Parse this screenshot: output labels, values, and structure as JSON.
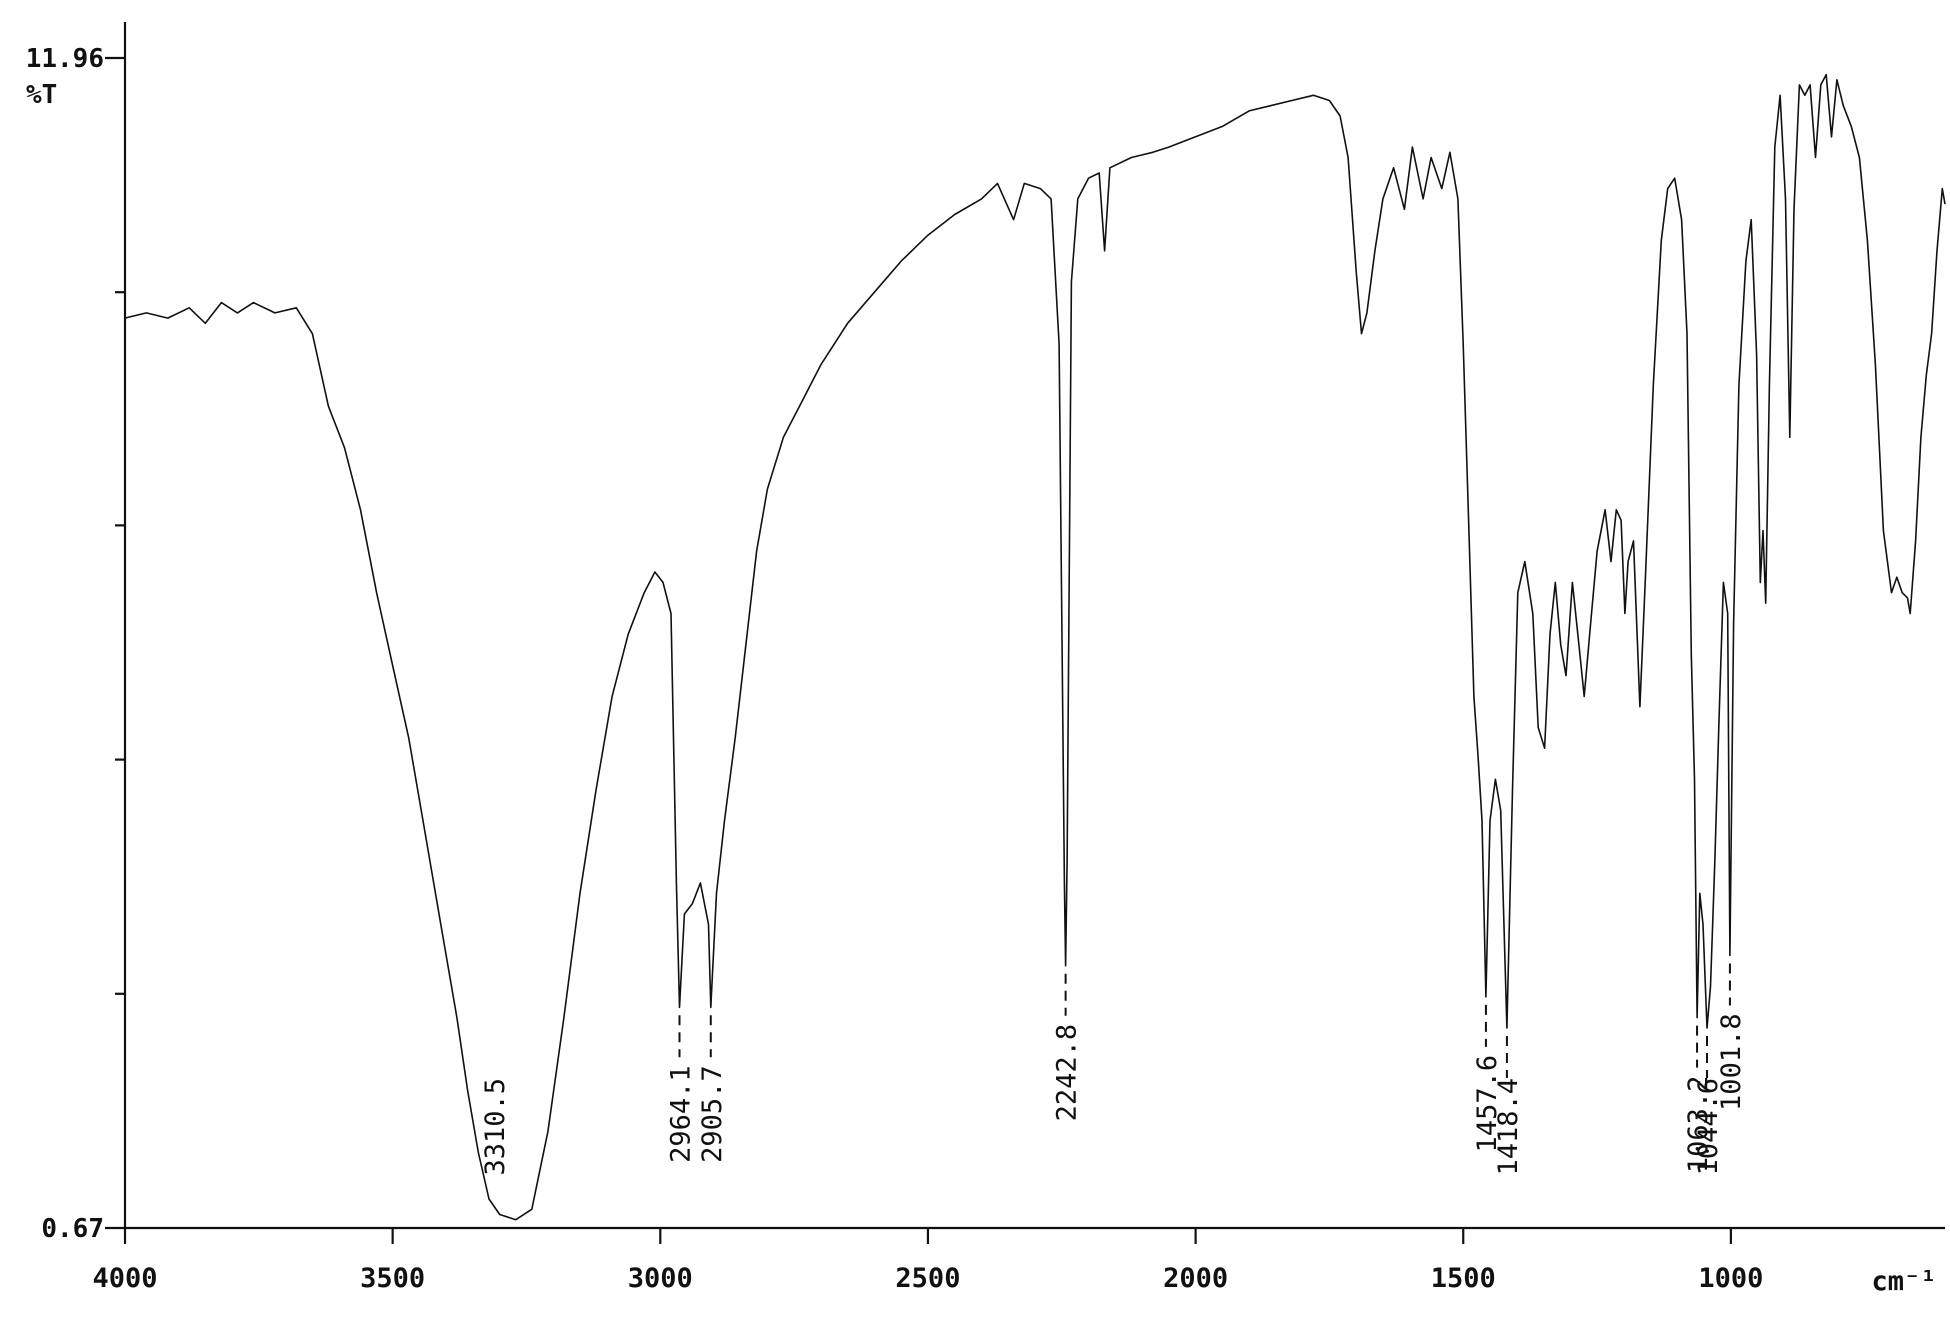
{
  "chart_data": {
    "type": "line",
    "title": "",
    "xlabel": "",
    "x_unit": "cm⁻¹",
    "ylabel": "%T",
    "x_axis_reversed": true,
    "xlim": [
      4000,
      600
    ],
    "ylim": [
      0.67,
      11.96
    ],
    "x_ticks": [
      4000,
      3500,
      3000,
      2500,
      2000,
      1500,
      1000
    ],
    "x_tick_labels": [
      "4000",
      "3500",
      "3000",
      "2500",
      "2000",
      "1500",
      "1000"
    ],
    "y_tick_labels": [
      {
        "value": 11.96,
        "label": "11.96"
      },
      {
        "value": 0.67,
        "label": "0.67"
      }
    ],
    "y_minor_ticks": [
      9.7,
      7.45,
      5.19,
      2.93
    ],
    "grid": false,
    "legend": "none",
    "peaks": [
      {
        "x": 3310.5,
        "label": "3310.5"
      },
      {
        "x": 2964.1,
        "label": "2964.1"
      },
      {
        "x": 2905.7,
        "label": "2905.7"
      },
      {
        "x": 2242.8,
        "label": "2242.8"
      },
      {
        "x": 1457.6,
        "label": "1457.6"
      },
      {
        "x": 1418.4,
        "label": "1418.4"
      },
      {
        "x": 1063.2,
        "label": "1063.2"
      },
      {
        "x": 1044.6,
        "label": "1044.6"
      },
      {
        "x": 1001.8,
        "label": "1001.8"
      }
    ],
    "series": [
      {
        "color": "#111111",
        "points": [
          [
            4000,
            9.45
          ],
          [
            3960,
            9.5
          ],
          [
            3920,
            9.45
          ],
          [
            3880,
            9.55
          ],
          [
            3850,
            9.4
          ],
          [
            3820,
            9.6
          ],
          [
            3790,
            9.5
          ],
          [
            3760,
            9.6
          ],
          [
            3720,
            9.5
          ],
          [
            3680,
            9.55
          ],
          [
            3650,
            9.3
          ],
          [
            3620,
            8.6
          ],
          [
            3590,
            8.2
          ],
          [
            3560,
            7.6
          ],
          [
            3530,
            6.8
          ],
          [
            3500,
            6.1
          ],
          [
            3470,
            5.4
          ],
          [
            3440,
            4.5
          ],
          [
            3410,
            3.6
          ],
          [
            3380,
            2.7
          ],
          [
            3360,
            2.0
          ],
          [
            3340,
            1.4
          ],
          [
            3320,
            0.95
          ],
          [
            3300,
            0.8
          ],
          [
            3270,
            0.75
          ],
          [
            3240,
            0.85
          ],
          [
            3210,
            1.6
          ],
          [
            3180,
            2.7
          ],
          [
            3150,
            3.9
          ],
          [
            3120,
            4.9
          ],
          [
            3090,
            5.8
          ],
          [
            3060,
            6.4
          ],
          [
            3030,
            6.8
          ],
          [
            3010,
            7.0
          ],
          [
            2995,
            6.9
          ],
          [
            2980,
            6.6
          ],
          [
            2970,
            4.0
          ],
          [
            2964.1,
            2.8
          ],
          [
            2955,
            3.7
          ],
          [
            2940,
            3.8
          ],
          [
            2925,
            4.0
          ],
          [
            2910,
            3.6
          ],
          [
            2905.7,
            2.8
          ],
          [
            2895,
            3.9
          ],
          [
            2880,
            4.6
          ],
          [
            2860,
            5.4
          ],
          [
            2840,
            6.3
          ],
          [
            2820,
            7.2
          ],
          [
            2800,
            7.8
          ],
          [
            2770,
            8.3
          ],
          [
            2740,
            8.6
          ],
          [
            2700,
            9.0
          ],
          [
            2650,
            9.4
          ],
          [
            2600,
            9.7
          ],
          [
            2550,
            10.0
          ],
          [
            2500,
            10.25
          ],
          [
            2450,
            10.45
          ],
          [
            2400,
            10.6
          ],
          [
            2370,
            10.75
          ],
          [
            2340,
            10.4
          ],
          [
            2320,
            10.75
          ],
          [
            2290,
            10.7
          ],
          [
            2270,
            10.6
          ],
          [
            2255,
            9.2
          ],
          [
            2245,
            4.0
          ],
          [
            2242.8,
            3.2
          ],
          [
            2240,
            4.2
          ],
          [
            2232,
            9.8
          ],
          [
            2220,
            10.6
          ],
          [
            2200,
            10.8
          ],
          [
            2180,
            10.85
          ],
          [
            2170,
            10.1
          ],
          [
            2160,
            10.9
          ],
          [
            2120,
            11.0
          ],
          [
            2080,
            11.05
          ],
          [
            2050,
            11.1
          ],
          [
            2000,
            11.2
          ],
          [
            1950,
            11.3
          ],
          [
            1900,
            11.45
          ],
          [
            1860,
            11.5
          ],
          [
            1820,
            11.55
          ],
          [
            1780,
            11.6
          ],
          [
            1750,
            11.55
          ],
          [
            1730,
            11.4
          ],
          [
            1715,
            11.0
          ],
          [
            1700,
            9.9
          ],
          [
            1690,
            9.3
          ],
          [
            1680,
            9.5
          ],
          [
            1665,
            10.1
          ],
          [
            1650,
            10.6
          ],
          [
            1630,
            10.9
          ],
          [
            1610,
            10.5
          ],
          [
            1595,
            11.1
          ],
          [
            1575,
            10.6
          ],
          [
            1560,
            11.0
          ],
          [
            1540,
            10.7
          ],
          [
            1525,
            11.05
          ],
          [
            1510,
            10.6
          ],
          [
            1500,
            9.2
          ],
          [
            1490,
            7.5
          ],
          [
            1480,
            5.8
          ],
          [
            1472,
            5.2
          ],
          [
            1465,
            4.6
          ],
          [
            1457.6,
            2.9
          ],
          [
            1450,
            4.6
          ],
          [
            1440,
            5.0
          ],
          [
            1430,
            4.7
          ],
          [
            1418.4,
            2.6
          ],
          [
            1408,
            4.9
          ],
          [
            1398,
            6.8
          ],
          [
            1385,
            7.1
          ],
          [
            1370,
            6.6
          ],
          [
            1360,
            5.5
          ],
          [
            1348,
            5.3
          ],
          [
            1338,
            6.4
          ],
          [
            1328,
            6.9
          ],
          [
            1318,
            6.3
          ],
          [
            1308,
            6.0
          ],
          [
            1296,
            6.9
          ],
          [
            1284,
            6.3
          ],
          [
            1274,
            5.8
          ],
          [
            1262,
            6.5
          ],
          [
            1250,
            7.2
          ],
          [
            1235,
            7.6
          ],
          [
            1224,
            7.1
          ],
          [
            1214,
            7.6
          ],
          [
            1205,
            7.5
          ],
          [
            1198,
            6.6
          ],
          [
            1192,
            7.1
          ],
          [
            1182,
            7.3
          ],
          [
            1170,
            5.7
          ],
          [
            1160,
            6.9
          ],
          [
            1145,
            8.8
          ],
          [
            1130,
            10.2
          ],
          [
            1118,
            10.7
          ],
          [
            1105,
            10.8
          ],
          [
            1092,
            10.4
          ],
          [
            1082,
            9.3
          ],
          [
            1074,
            6.2
          ],
          [
            1068,
            5.0
          ],
          [
            1063.2,
            2.7
          ],
          [
            1058,
            3.9
          ],
          [
            1052,
            3.6
          ],
          [
            1044.6,
            2.6
          ],
          [
            1038,
            3.0
          ],
          [
            1030,
            4.2
          ],
          [
            1022,
            5.6
          ],
          [
            1014,
            6.9
          ],
          [
            1006,
            6.6
          ],
          [
            1001.8,
            3.3
          ],
          [
            995,
            6.5
          ],
          [
            985,
            8.8
          ],
          [
            972,
            10.0
          ],
          [
            962,
            10.4
          ],
          [
            952,
            9.1
          ],
          [
            945,
            6.9
          ],
          [
            940,
            7.4
          ],
          [
            935,
            6.7
          ],
          [
            928,
            8.8
          ],
          [
            918,
            11.1
          ],
          [
            908,
            11.6
          ],
          [
            898,
            10.6
          ],
          [
            890,
            8.3
          ],
          [
            882,
            10.5
          ],
          [
            872,
            11.7
          ],
          [
            862,
            11.6
          ],
          [
            852,
            11.7
          ],
          [
            842,
            11.0
          ],
          [
            832,
            11.7
          ],
          [
            822,
            11.8
          ],
          [
            812,
            11.2
          ],
          [
            802,
            11.75
          ],
          [
            790,
            11.5
          ],
          [
            775,
            11.3
          ],
          [
            760,
            11.0
          ],
          [
            745,
            10.2
          ],
          [
            730,
            9.0
          ],
          [
            715,
            7.4
          ],
          [
            700,
            6.8
          ],
          [
            690,
            6.95
          ],
          [
            680,
            6.8
          ],
          [
            670,
            6.75
          ],
          [
            665,
            6.6
          ],
          [
            655,
            7.3
          ],
          [
            645,
            8.3
          ],
          [
            635,
            8.9
          ],
          [
            625,
            9.3
          ],
          [
            615,
            10.1
          ],
          [
            605,
            10.7
          ],
          [
            600,
            10.55
          ]
        ]
      }
    ]
  }
}
